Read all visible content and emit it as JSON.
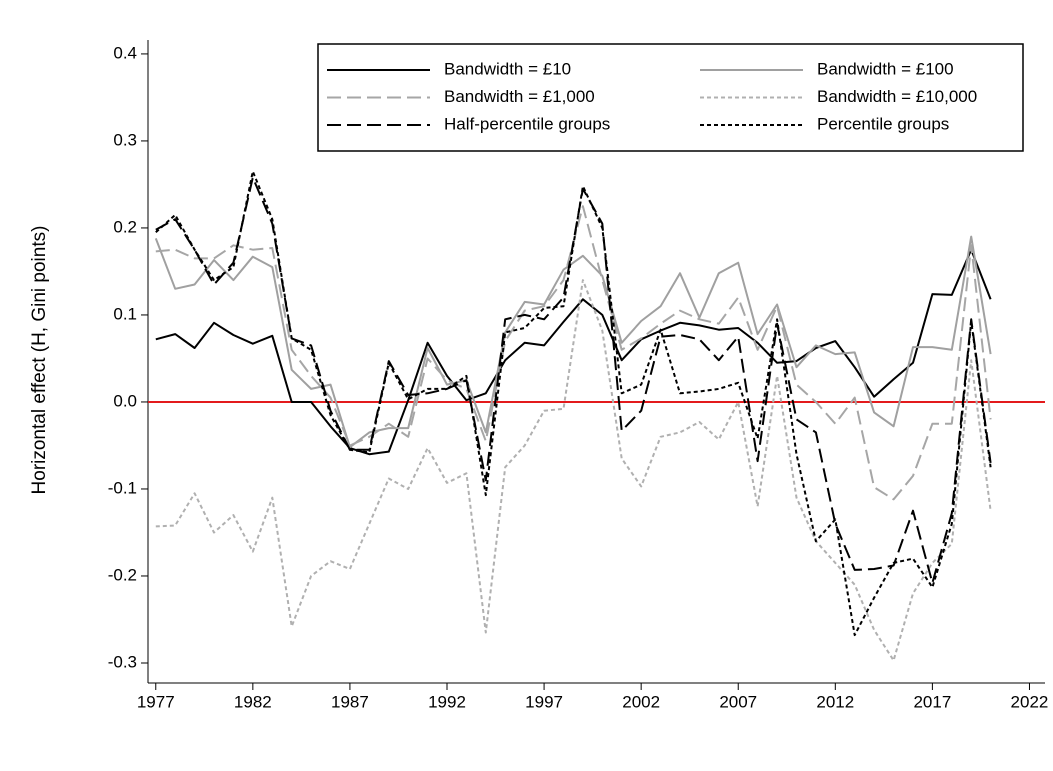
{
  "chart_data": {
    "type": "line",
    "y_label": "Horizontal effect (H, Gini points)",
    "x": [
      1977,
      1978,
      1979,
      1980,
      1981,
      1982,
      1983,
      1984,
      1985,
      1986,
      1987,
      1988,
      1989,
      1990,
      1991,
      1992,
      1993,
      1994,
      1995,
      1996,
      1997,
      1998,
      1999,
      2000,
      2001,
      2002,
      2003,
      2004,
      2005,
      2006,
      2007,
      2008,
      2009,
      2010,
      2011,
      2012,
      2013,
      2014,
      2015,
      2016,
      2017,
      2018,
      2019,
      2020
    ],
    "xlim": [
      1976.6,
      2022.8
    ],
    "xticks": [
      1977,
      1982,
      1987,
      1992,
      1997,
      2002,
      2007,
      2012,
      2017,
      2022
    ],
    "ylim": [
      -0.323,
      0.416
    ],
    "yticks": [
      0.4,
      0.3,
      0.2,
      0.1,
      {
        "value": 0,
        "label": "0.0"
      },
      -0.1,
      -0.2,
      -0.3
    ],
    "reference_line": {
      "value": 0,
      "color": "#e31a1c"
    },
    "legend": "top-right",
    "series": [
      {
        "name": "Bandwidth = £10",
        "color": "#000000",
        "dash": "none",
        "values": [
          0.072,
          0.078,
          0.062,
          0.091,
          0.077,
          0.067,
          0.076,
          0.0,
          0.0,
          -0.028,
          -0.053,
          -0.06,
          -0.057,
          0.002,
          0.068,
          0.03,
          0.002,
          0.01,
          0.048,
          0.068,
          0.065,
          0.092,
          0.118,
          0.1,
          0.048,
          0.072,
          0.082,
          0.091,
          0.088,
          0.083,
          0.085,
          0.068,
          0.045,
          0.047,
          0.062,
          0.07,
          0.04,
          0.006,
          0.026,
          0.045,
          0.124,
          0.123,
          0.175,
          0.118
        ]
      },
      {
        "name": "Bandwidth = £100",
        "color": "#a0a0a0",
        "dash": "none",
        "values": [
          0.188,
          0.13,
          0.135,
          0.163,
          0.14,
          0.167,
          0.155,
          0.037,
          0.015,
          0.02,
          -0.052,
          -0.035,
          -0.03,
          -0.03,
          0.062,
          0.02,
          0.025,
          -0.035,
          0.08,
          0.115,
          0.112,
          0.152,
          0.168,
          0.145,
          0.068,
          0.093,
          0.11,
          0.148,
          0.097,
          0.148,
          0.16,
          0.078,
          0.112,
          0.04,
          0.065,
          0.055,
          0.057,
          -0.012,
          -0.028,
          0.063,
          0.063,
          0.06,
          0.19,
          0.055
        ]
      },
      {
        "name": "Bandwidth = £1,000",
        "color": "#a6a6a6",
        "dash": "14,6",
        "values": [
          0.173,
          0.175,
          0.165,
          0.165,
          0.18,
          0.175,
          0.177,
          0.06,
          0.03,
          0.005,
          -0.05,
          -0.04,
          -0.025,
          -0.04,
          0.05,
          0.025,
          0.015,
          -0.045,
          0.07,
          0.105,
          0.11,
          0.14,
          0.225,
          0.14,
          0.06,
          0.073,
          0.09,
          0.105,
          0.095,
          0.09,
          0.12,
          0.06,
          0.11,
          0.02,
          0.0,
          -0.025,
          0.005,
          -0.098,
          -0.112,
          -0.085,
          -0.025,
          -0.025,
          0.18,
          -0.02
        ]
      },
      {
        "name": "Bandwidth = £10,000",
        "color": "#b0b0b0",
        "dash": "4,3",
        "values": [
          -0.143,
          -0.142,
          -0.105,
          -0.15,
          -0.13,
          -0.172,
          -0.11,
          -0.258,
          -0.2,
          -0.183,
          -0.192,
          -0.14,
          -0.088,
          -0.1,
          -0.053,
          -0.093,
          -0.082,
          -0.265,
          -0.075,
          -0.05,
          -0.01,
          -0.008,
          0.14,
          0.082,
          -0.065,
          -0.097,
          -0.04,
          -0.035,
          -0.023,
          -0.043,
          0.0,
          -0.12,
          0.03,
          -0.11,
          -0.16,
          -0.185,
          -0.21,
          -0.262,
          -0.297,
          -0.22,
          -0.185,
          -0.163,
          0.048,
          -0.125
        ]
      },
      {
        "name": "Half-percentile groups",
        "color": "#000000",
        "dash": "14,6",
        "values": [
          0.198,
          0.21,
          0.175,
          0.135,
          0.16,
          0.258,
          0.205,
          0.073,
          0.065,
          -0.01,
          -0.055,
          -0.055,
          0.047,
          0.008,
          0.01,
          0.015,
          0.025,
          -0.09,
          0.095,
          0.1,
          0.095,
          0.12,
          0.245,
          0.205,
          -0.033,
          -0.01,
          0.075,
          0.077,
          0.072,
          0.048,
          0.075,
          -0.068,
          0.09,
          -0.02,
          -0.035,
          -0.14,
          -0.193,
          -0.192,
          -0.188,
          -0.125,
          -0.208,
          -0.128,
          0.095,
          -0.07
        ]
      },
      {
        "name": "Percentile groups",
        "color": "#000000",
        "dash": "4,3",
        "values": [
          0.195,
          0.215,
          0.175,
          0.14,
          0.155,
          0.265,
          0.21,
          0.073,
          0.06,
          -0.015,
          -0.055,
          -0.058,
          0.045,
          0.003,
          0.015,
          0.015,
          0.03,
          -0.107,
          0.08,
          0.085,
          0.108,
          0.11,
          0.248,
          0.2,
          0.01,
          0.02,
          0.083,
          0.01,
          0.012,
          0.015,
          0.022,
          -0.042,
          0.095,
          -0.06,
          -0.16,
          -0.135,
          -0.268,
          -0.225,
          -0.185,
          -0.18,
          -0.213,
          -0.14,
          0.093,
          -0.075
        ]
      }
    ]
  }
}
